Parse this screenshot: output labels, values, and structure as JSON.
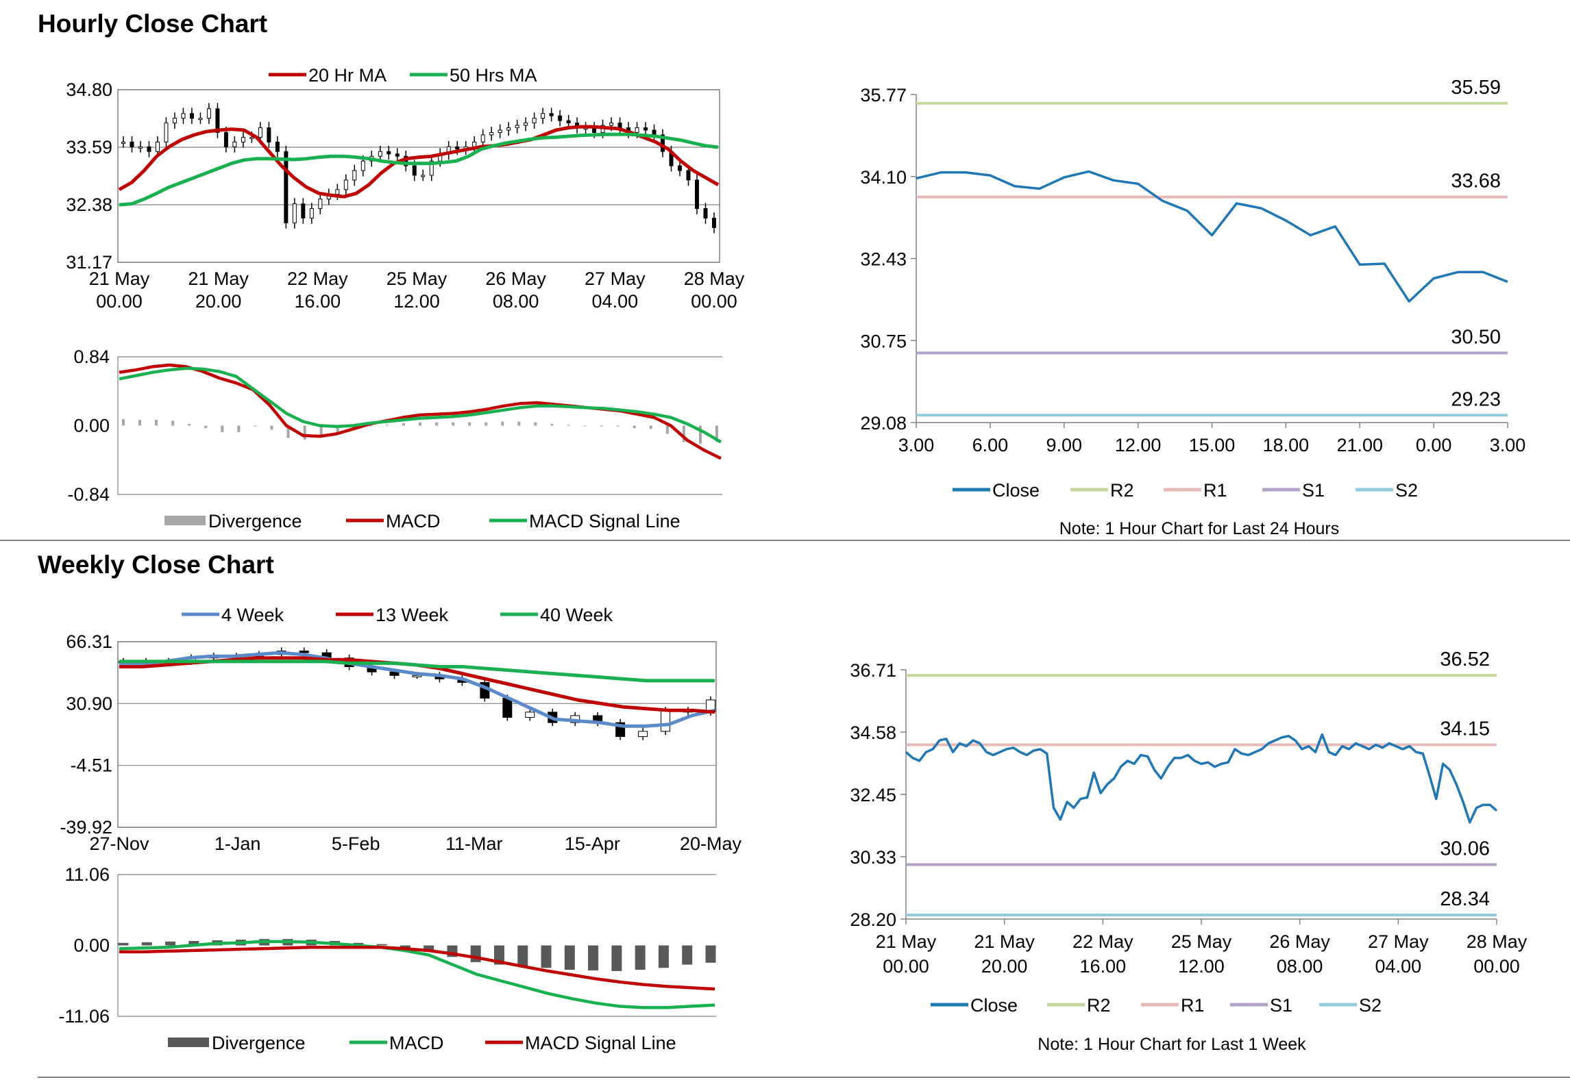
{
  "sections": {
    "hourly_title": "Hourly Close Chart",
    "weekly_title": "Weekly Close Chart"
  },
  "colors": {
    "red": "#C00000",
    "green": "#19B050",
    "blue": "#5B8AC8",
    "close": "#1F77B4",
    "r2": "#C4D79B",
    "r1": "#E6B9B8",
    "s1": "#B3A2C7",
    "s2": "#93CDDD",
    "divergence_light": "#A6A6A6",
    "divergence_dark": "#595959",
    "grid": "#808080"
  },
  "chart_data": [
    {
      "id": "hourly_price",
      "type": "candlestick",
      "yticks": [
        "34.80",
        "33.59",
        "32.38",
        "31.17"
      ],
      "ylim": [
        31.17,
        34.8
      ],
      "xticks": [
        [
          "21 May",
          "00.00"
        ],
        [
          "21 May",
          "20.00"
        ],
        [
          "22 May",
          "16.00"
        ],
        [
          "25 May",
          "12.00"
        ],
        [
          "26 May",
          "08.00"
        ],
        [
          "27 May",
          "04.00"
        ],
        [
          "28 May",
          "00.00"
        ]
      ],
      "legend": [
        "20 Hr MA",
        "50 Hrs MA"
      ],
      "series": [
        {
          "name": "20 Hr MA",
          "values": [
            32.7,
            32.85,
            33.1,
            33.4,
            33.6,
            33.75,
            33.85,
            33.92,
            33.95,
            33.97,
            33.95,
            33.8,
            33.5,
            33.2,
            32.95,
            32.75,
            32.62,
            32.58,
            32.55,
            32.62,
            32.8,
            33.05,
            33.25,
            33.35,
            33.38,
            33.4,
            33.45,
            33.5,
            33.55,
            33.6,
            33.62,
            33.65,
            33.7,
            33.75,
            33.85,
            33.95,
            34.0,
            34.02,
            34.02,
            34.0,
            33.98,
            33.9,
            33.8,
            33.7,
            33.55,
            33.3,
            33.1,
            32.95,
            32.8
          ]
        },
        {
          "name": "50 Hrs MA",
          "values": [
            32.38,
            32.4,
            32.5,
            32.62,
            32.75,
            32.85,
            32.95,
            33.05,
            33.15,
            33.25,
            33.32,
            33.35,
            33.35,
            33.34,
            33.33,
            33.35,
            33.38,
            33.4,
            33.4,
            33.38,
            33.35,
            33.3,
            33.27,
            33.25,
            33.25,
            33.25,
            33.27,
            33.3,
            33.4,
            33.55,
            33.62,
            33.68,
            33.72,
            33.76,
            33.79,
            33.8,
            33.82,
            33.84,
            33.85,
            33.86,
            33.86,
            33.86,
            33.84,
            33.82,
            33.78,
            33.74,
            33.68,
            33.62,
            33.59
          ]
        },
        {
          "name": "Candles",
          "values": [
            33.7,
            33.6,
            33.6,
            33.5,
            33.7,
            34.1,
            34.2,
            34.3,
            34.2,
            34.2,
            34.4,
            33.9,
            33.6,
            33.7,
            33.8,
            33.8,
            34.0,
            33.7,
            33.5,
            32.0,
            32.4,
            32.1,
            32.3,
            32.5,
            32.6,
            32.7,
            32.9,
            33.1,
            33.3,
            33.4,
            33.5,
            33.45,
            33.4,
            33.2,
            33.0,
            33.0,
            33.3,
            33.45,
            33.6,
            33.55,
            33.6,
            33.7,
            33.85,
            33.9,
            33.95,
            34.0,
            34.05,
            34.1,
            34.2,
            34.3,
            34.25,
            34.15,
            34.1,
            34.0,
            34.0,
            33.9,
            34.05,
            34.1,
            34.0,
            33.9,
            34.0,
            33.95,
            33.85,
            33.5,
            33.2,
            33.1,
            32.9,
            32.3,
            32.1,
            31.9
          ]
        }
      ]
    },
    {
      "id": "hourly_macd",
      "type": "line+bar",
      "yticks": [
        "0.84",
        "0.00",
        "-0.84"
      ],
      "ylim": [
        -0.84,
        0.84
      ],
      "legend": [
        "Divergence",
        "MACD",
        "MACD Signal Line"
      ],
      "series": [
        {
          "name": "MACD",
          "values": [
            0.65,
            0.68,
            0.72,
            0.74,
            0.72,
            0.66,
            0.58,
            0.52,
            0.44,
            0.25,
            0.0,
            -0.12,
            -0.13,
            -0.1,
            -0.04,
            0.02,
            0.06,
            0.1,
            0.13,
            0.14,
            0.15,
            0.17,
            0.2,
            0.24,
            0.27,
            0.28,
            0.26,
            0.24,
            0.22,
            0.2,
            0.18,
            0.14,
            0.1,
            0.0,
            -0.18,
            -0.3,
            -0.4
          ]
        },
        {
          "name": "MACD Signal Line",
          "values": [
            0.57,
            0.61,
            0.65,
            0.68,
            0.7,
            0.69,
            0.66,
            0.6,
            0.45,
            0.3,
            0.15,
            0.05,
            0.0,
            -0.01,
            0.0,
            0.03,
            0.05,
            0.07,
            0.09,
            0.1,
            0.11,
            0.13,
            0.16,
            0.19,
            0.22,
            0.24,
            0.24,
            0.23,
            0.22,
            0.21,
            0.19,
            0.17,
            0.14,
            0.1,
            0.02,
            -0.08,
            -0.2
          ]
        },
        {
          "name": "Divergence",
          "values": [
            0.08,
            0.07,
            0.07,
            0.06,
            0.02,
            -0.03,
            -0.08,
            -0.08,
            -0.01,
            -0.05,
            -0.15,
            -0.17,
            -0.13,
            -0.09,
            -0.04,
            -0.01,
            0.01,
            0.03,
            0.04,
            0.04,
            0.04,
            0.04,
            0.04,
            0.05,
            0.05,
            0.04,
            0.02,
            0.01,
            0.0,
            -0.01,
            -0.01,
            -0.03,
            -0.04,
            -0.1,
            -0.2,
            -0.22,
            -0.2
          ]
        }
      ]
    },
    {
      "id": "hourly_close_24h",
      "type": "line",
      "yticks": [
        "35.77",
        "34.10",
        "32.43",
        "30.75",
        "29.08"
      ],
      "ylim": [
        29.08,
        35.77
      ],
      "xticks": [
        "3.00",
        "6.00",
        "9.00",
        "12.00",
        "15.00",
        "18.00",
        "21.00",
        "0.00",
        "3.00"
      ],
      "x": [
        3,
        4,
        5,
        6,
        7,
        8,
        9,
        10,
        11,
        12,
        13,
        14,
        15,
        16,
        17,
        18,
        19,
        20,
        21,
        22,
        23,
        24,
        25,
        26,
        27
      ],
      "levels": {
        "R2": 35.59,
        "R1": 33.68,
        "S1": 30.5,
        "S2": 29.23
      },
      "level_labels": [
        "35.59",
        "33.68",
        "30.50",
        "29.23"
      ],
      "series": [
        {
          "name": "Close",
          "values": [
            34.06,
            34.18,
            34.18,
            34.12,
            33.9,
            33.85,
            34.08,
            34.2,
            34.02,
            33.95,
            33.6,
            33.4,
            32.9,
            33.55,
            33.45,
            33.2,
            32.9,
            33.08,
            32.3,
            32.32,
            31.55,
            32.02,
            32.15,
            32.15,
            31.95
          ]
        }
      ],
      "legend": [
        "Close",
        "R2",
        "R1",
        "S1",
        "S2"
      ],
      "note": "Note: 1 Hour Chart for Last 24 Hours"
    },
    {
      "id": "weekly_price",
      "type": "candlestick",
      "yticks": [
        "66.31",
        "30.90",
        "-4.51",
        "-39.92"
      ],
      "ylim": [
        -39.92,
        66.31
      ],
      "xticks": [
        "27-Nov",
        "1-Jan",
        "5-Feb",
        "11-Mar",
        "15-Apr",
        "20-May"
      ],
      "legend": [
        "4 Week",
        "13 Week",
        "40 Week"
      ],
      "series": [
        {
          "name": "4 Week",
          "values": [
            54,
            54,
            55,
            57,
            58,
            58,
            59,
            60,
            59,
            57,
            54,
            52,
            50,
            48,
            47,
            45,
            40,
            34,
            28,
            22,
            21,
            20,
            18,
            18,
            19,
            24,
            27
          ]
        },
        {
          "name": "13 Week",
          "values": [
            52,
            52,
            53,
            54,
            55,
            56,
            57,
            57,
            57,
            56,
            56,
            55,
            54,
            53,
            51,
            48,
            45,
            42,
            39,
            36,
            33,
            31,
            29,
            28,
            27,
            27,
            26
          ]
        },
        {
          "name": "40 Week",
          "values": [
            55,
            55,
            55,
            55,
            55,
            55,
            55,
            55,
            55,
            55,
            54,
            54,
            54,
            53,
            52,
            52,
            51,
            50,
            49,
            48,
            47,
            46,
            45,
            44,
            44,
            44,
            44
          ]
        },
        {
          "name": "Candles",
          "values": [
            55,
            55,
            55,
            57,
            58,
            58,
            59,
            61,
            60,
            57,
            52,
            49,
            47,
            47,
            45,
            43,
            34,
            23,
            26,
            20,
            24,
            20,
            12,
            15,
            27,
            26,
            33
          ]
        }
      ]
    },
    {
      "id": "weekly_macd",
      "type": "line+bar",
      "yticks": [
        "11.06",
        "0.00",
        "-11.06"
      ],
      "ylim": [
        -11.06,
        11.06
      ],
      "legend": [
        "Divergence",
        "MACD",
        "MACD Signal Line"
      ],
      "series": [
        {
          "name": "MACD",
          "values": [
            -0.5,
            -0.4,
            -0.3,
            0.0,
            0.3,
            0.4,
            0.6,
            0.6,
            0.5,
            0.3,
            0.0,
            -0.3,
            -0.8,
            -1.5,
            -3.0,
            -4.5,
            -5.5,
            -6.5,
            -7.5,
            -8.3,
            -9.0,
            -9.5,
            -9.7,
            -9.7,
            -9.5,
            -9.3
          ]
        },
        {
          "name": "MACD Signal Line",
          "values": [
            -1.0,
            -1.0,
            -0.9,
            -0.8,
            -0.7,
            -0.6,
            -0.5,
            -0.4,
            -0.3,
            -0.3,
            -0.3,
            -0.3,
            -0.5,
            -0.8,
            -1.3,
            -1.9,
            -2.6,
            -3.3,
            -4.0,
            -4.6,
            -5.2,
            -5.7,
            -6.1,
            -6.4,
            -6.6,
            -6.8
          ]
        },
        {
          "name": "Divergence",
          "values": [
            0.4,
            0.5,
            0.6,
            0.7,
            0.8,
            0.9,
            1.0,
            1.0,
            0.9,
            0.7,
            0.4,
            0.2,
            -0.4,
            -1.0,
            -1.8,
            -2.6,
            -3.0,
            -3.3,
            -3.5,
            -3.8,
            -3.9,
            -4.0,
            -3.8,
            -3.5,
            -3.0,
            -2.7
          ]
        }
      ]
    },
    {
      "id": "weekly_close_1w",
      "type": "line",
      "yticks": [
        "36.71",
        "34.58",
        "32.45",
        "30.33",
        "28.20"
      ],
      "ylim": [
        28.2,
        36.71
      ],
      "xticks": [
        [
          "21 May",
          "00.00"
        ],
        [
          "21 May",
          "20.00"
        ],
        [
          "22 May",
          "16.00"
        ],
        [
          "25 May",
          "12.00"
        ],
        [
          "26 May",
          "08.00"
        ],
        [
          "27 May",
          "04.00"
        ],
        [
          "28 May",
          "00.00"
        ]
      ],
      "levels": {
        "R2": 36.52,
        "R1": 34.15,
        "S1": 30.06,
        "S2": 28.34
      },
      "level_labels": [
        "36.52",
        "34.15",
        "30.06",
        "28.34"
      ],
      "series": [
        {
          "name": "Close",
          "values": [
            33.9,
            33.7,
            33.6,
            33.9,
            34.0,
            34.3,
            34.35,
            33.9,
            34.2,
            34.1,
            34.3,
            34.2,
            33.9,
            33.8,
            33.9,
            34.0,
            34.05,
            33.9,
            33.8,
            33.95,
            34.0,
            33.85,
            32.0,
            31.6,
            32.2,
            32.0,
            32.3,
            32.35,
            33.2,
            32.5,
            32.8,
            33.0,
            33.4,
            33.6,
            33.5,
            33.8,
            33.75,
            33.3,
            33.0,
            33.4,
            33.7,
            33.7,
            33.8,
            33.6,
            33.5,
            33.55,
            33.4,
            33.5,
            33.55,
            34.0,
            33.85,
            33.8,
            33.9,
            34.0,
            34.2,
            34.3,
            34.4,
            34.45,
            34.3,
            34.0,
            34.1,
            33.9,
            34.5,
            33.9,
            33.8,
            34.1,
            34.0,
            34.2,
            34.1,
            34.0,
            34.15,
            34.05,
            34.2,
            34.1,
            34.0,
            34.1,
            33.9,
            33.85,
            33.1,
            32.3,
            33.5,
            33.3,
            32.8,
            32.2,
            31.5,
            32.0,
            32.1,
            32.1,
            31.9
          ]
        }
      ],
      "legend": [
        "Close",
        "R2",
        "R1",
        "S1",
        "S2"
      ],
      "note": "Note: 1 Hour Chart for Last 1 Week"
    }
  ]
}
